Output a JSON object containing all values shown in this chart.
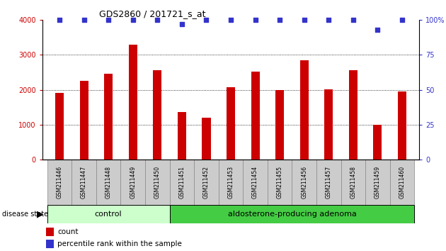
{
  "title": "GDS2860 / 201721_s_at",
  "samples": [
    "GSM211446",
    "GSM211447",
    "GSM211448",
    "GSM211449",
    "GSM211450",
    "GSM211451",
    "GSM211452",
    "GSM211453",
    "GSM211454",
    "GSM211455",
    "GSM211456",
    "GSM211457",
    "GSM211458",
    "GSM211459",
    "GSM211460"
  ],
  "counts": [
    1900,
    2250,
    2450,
    3300,
    2570,
    1350,
    1200,
    2080,
    2520,
    2000,
    2840,
    2020,
    2570,
    1000,
    1950
  ],
  "percentiles": [
    100,
    100,
    100,
    100,
    100,
    97,
    100,
    100,
    100,
    100,
    100,
    100,
    100,
    93,
    100
  ],
  "n_control": 5,
  "n_adenoma": 10,
  "control_label": "control",
  "adenoma_label": "aldosterone-producing adenoma",
  "disease_state_label": "disease state",
  "bar_color": "#cc0000",
  "percentile_color": "#3333cc",
  "control_bg": "#ccffcc",
  "adenoma_bg": "#44cc44",
  "tick_bg": "#cccccc",
  "ylim_left": [
    0,
    4000
  ],
  "yticks_left": [
    0,
    1000,
    2000,
    3000,
    4000
  ],
  "yticks_right": [
    0,
    25,
    50,
    75,
    100
  ],
  "legend_count_label": "count",
  "legend_percentile_label": "percentile rank within the sample",
  "bg_color": "#ffffff"
}
